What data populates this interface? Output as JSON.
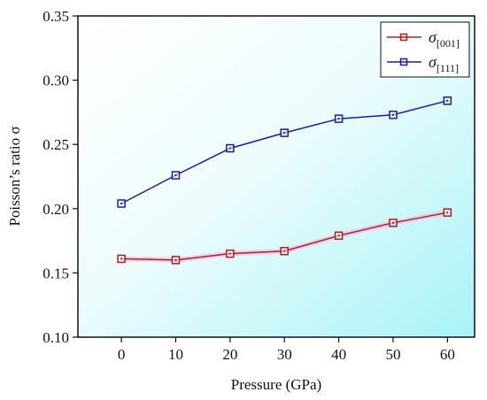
{
  "chart_data": {
    "type": "line",
    "xlabel": "Pressure (GPa)",
    "ylabel": "Poisson’s ratio σ",
    "xlim": [
      -8,
      65
    ],
    "ylim": [
      0.1,
      0.35
    ],
    "x_ticks": [
      0,
      10,
      20,
      30,
      40,
      50,
      60
    ],
    "y_ticks": [
      0.1,
      0.15,
      0.2,
      0.25,
      0.3,
      0.35
    ],
    "x": [
      0,
      10,
      20,
      30,
      40,
      50,
      60
    ],
    "series": [
      {
        "name_symbol": "σ",
        "name_subscript": "[001]",
        "color": "#b0201a",
        "values": [
          0.161,
          0.16,
          0.165,
          0.167,
          0.179,
          0.189,
          0.197
        ]
      },
      {
        "name_symbol": "σ",
        "name_subscript": "[111]",
        "color": "#1a1ab0",
        "values": [
          0.204,
          0.226,
          0.247,
          0.259,
          0.27,
          0.273,
          0.284
        ]
      }
    ],
    "legend_position": "top-right",
    "marker": "open-square",
    "background": "gradient white to cyan"
  }
}
